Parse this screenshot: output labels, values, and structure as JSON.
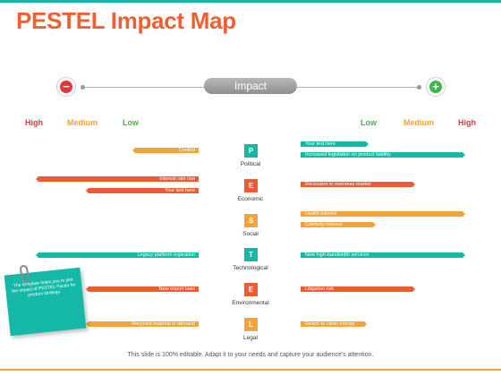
{
  "title": "PESTEL Impact Map",
  "axis": {
    "label": "Impact",
    "minus_symbol": "−",
    "plus_symbol": "+"
  },
  "scale_left": [
    "High",
    "Medium",
    "Low"
  ],
  "scale_right": [
    "Low",
    "Medium",
    "High"
  ],
  "factors": [
    {
      "letter": "P",
      "name": "Political",
      "color": "#14b8a6",
      "left": [
        {
          "text": "Conflict",
          "color": "#f3a337"
        }
      ],
      "right": [
        {
          "text": "Your text here",
          "color": "#14b8a6"
        },
        {
          "text": "Increased legislation on product liability",
          "color": "#14b8a6"
        }
      ]
    },
    {
      "letter": "E",
      "name": "Economic",
      "color": "#ec5b32",
      "left": [
        {
          "text": "Interest rate rise",
          "color": "#ec5b32"
        },
        {
          "text": "Your text here",
          "color": "#ec5b32"
        }
      ],
      "right": [
        {
          "text": "Recession in overseas market",
          "color": "#ec5b32"
        }
      ]
    },
    {
      "letter": "S",
      "name": "Social",
      "color": "#f3a337",
      "left": [],
      "right": [
        {
          "text": "Health interest",
          "color": "#f3a337"
        },
        {
          "text": "Celebrity interest",
          "color": "#f3a337"
        }
      ]
    },
    {
      "letter": "T",
      "name": "Technological",
      "color": "#14b8a6",
      "left": [
        {
          "text": "Legacy platform expiration",
          "color": "#14b8a6"
        }
      ],
      "right": [
        {
          "text": "New high-bandwidth services",
          "color": "#14b8a6"
        }
      ]
    },
    {
      "letter": "E",
      "name": "Environmental",
      "color": "#ec5b32",
      "left": [
        {
          "text": "New import laws",
          "color": "#ec5b32"
        }
      ],
      "right": [
        {
          "text": "Litigation risk",
          "color": "#ec5b32"
        }
      ]
    },
    {
      "letter": "L",
      "name": "Legal",
      "color": "#f3a337",
      "left": [
        {
          "text": "Recycled material in demand",
          "color": "#f3a337"
        }
      ],
      "right": [
        {
          "text": "Switch to clean energy",
          "color": "#f3a337"
        }
      ]
    }
  ],
  "note": "The template helps you to plot the impact of PESTEL Factor for product strategy.",
  "footer": "This slide is 100% editable. Adapt it to your needs and capture your audience's attention."
}
